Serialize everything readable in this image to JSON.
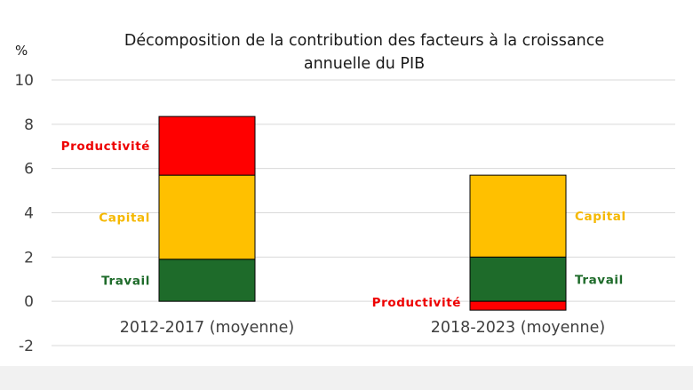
{
  "chart_data": {
    "type": "bar",
    "stacked": true,
    "title_lines": [
      "Décomposition de la contribution des facteurs  à la croissance",
      "annuelle du PIB"
    ],
    "ylabel": "%",
    "ylim": [
      -2,
      10
    ],
    "yticks": [
      "10",
      "8",
      "6",
      "4",
      "2",
      "0",
      "-2"
    ],
    "ytick_values": [
      10,
      8,
      6,
      4,
      2,
      0,
      -2
    ],
    "grid": true,
    "legend": "none",
    "categories": [
      "2012-2017 (moyenne)",
      "2018-2023 (moyenne)"
    ],
    "series": [
      {
        "name": "Travail",
        "color": "#1e6b2a",
        "values": [
          1.9,
          2.0
        ]
      },
      {
        "name": "Capital",
        "color": "#ffc000",
        "values": [
          3.8,
          3.7
        ]
      },
      {
        "name": "Productivité",
        "color": "#ff0000",
        "values": [
          2.65,
          -0.4
        ]
      }
    ],
    "segment_labels": [
      {
        "text": "Travail",
        "series": 0,
        "category": 0,
        "side": "left"
      },
      {
        "text": "Capital",
        "series": 1,
        "category": 0,
        "side": "left"
      },
      {
        "text": "Productivité",
        "series": 2,
        "category": 0,
        "side": "left"
      },
      {
        "text": "Travail",
        "series": 0,
        "category": 1,
        "side": "right"
      },
      {
        "text": "Capital",
        "series": 1,
        "category": 1,
        "side": "right"
      },
      {
        "text": "Productivité",
        "series": 2,
        "category": 1,
        "side": "left"
      }
    ],
    "label_colors": {
      "Travail": "#1e6b2a",
      "Capital": "#f5b800",
      "Productivité": "#ee0000"
    }
  }
}
